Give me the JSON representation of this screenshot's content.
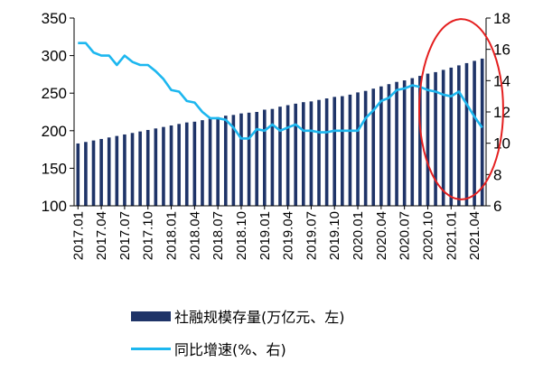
{
  "chart_data": {
    "type": "bar+line",
    "categories": [
      "2017.01",
      "2017.02",
      "2017.03",
      "2017.04",
      "2017.05",
      "2017.06",
      "2017.07",
      "2017.08",
      "2017.09",
      "2017.10",
      "2017.11",
      "2017.12",
      "2018.01",
      "2018.02",
      "2018.03",
      "2018.04",
      "2018.05",
      "2018.06",
      "2018.07",
      "2018.08",
      "2018.09",
      "2018.10",
      "2018.11",
      "2018.12",
      "2019.01",
      "2019.02",
      "2019.03",
      "2019.04",
      "2019.05",
      "2019.06",
      "2019.07",
      "2019.08",
      "2019.09",
      "2019.10",
      "2019.11",
      "2019.12",
      "2020.01",
      "2020.02",
      "2020.03",
      "2020.04",
      "2020.05",
      "2020.06",
      "2020.07",
      "2020.08",
      "2020.09",
      "2020.10",
      "2020.11",
      "2020.12",
      "2021.01",
      "2021.02",
      "2021.03",
      "2021.04",
      "2021.05"
    ],
    "x_tick_labels": [
      "2017.01",
      "2017.04",
      "2017.07",
      "2017.10",
      "2018.01",
      "2018.04",
      "2018.07",
      "2018.10",
      "2019.01",
      "2019.04",
      "2019.07",
      "2019.10",
      "2020.01",
      "2020.04",
      "2020.07",
      "2020.10",
      "2021.01",
      "2021.04"
    ],
    "series": [
      {
        "name": "社融规模存量(万亿元、左)",
        "type": "bar",
        "axis": "left",
        "color": "#1f3468",
        "values": [
          183,
          185,
          187,
          189,
          191,
          193,
          195,
          197,
          199,
          201,
          203,
          205,
          207,
          209,
          211,
          212,
          214,
          216,
          218,
          220,
          221,
          223,
          224,
          225,
          228,
          229,
          232,
          234,
          236,
          238,
          239,
          241,
          243,
          245,
          246,
          248,
          251,
          253,
          256,
          259,
          262,
          265,
          267,
          270,
          273,
          276,
          278,
          281,
          284,
          287,
          290,
          293,
          296
        ]
      },
      {
        "name": "同比增速(%、右)",
        "type": "line",
        "axis": "right",
        "color": "#1db7ef",
        "values": [
          16.4,
          16.4,
          15.8,
          15.6,
          15.6,
          15.0,
          15.6,
          15.2,
          15.0,
          15.0,
          14.6,
          14.1,
          13.4,
          13.3,
          12.7,
          12.6,
          12.0,
          11.6,
          11.6,
          11.5,
          11.0,
          10.3,
          10.3,
          10.9,
          10.8,
          11.2,
          10.8,
          11.0,
          11.2,
          10.8,
          10.8,
          10.7,
          10.7,
          10.8,
          10.8,
          10.8,
          10.8,
          11.6,
          12.1,
          12.7,
          12.9,
          13.4,
          13.5,
          13.7,
          13.6,
          13.4,
          13.3,
          13.1,
          13.0,
          13.3,
          12.5,
          11.7,
          11.0
        ]
      }
    ],
    "y_left": {
      "ticks": [
        "100",
        "150",
        "200",
        "250",
        "300",
        "350"
      ],
      "range": [
        100,
        350
      ]
    },
    "y_right": {
      "ticks": [
        "6",
        "8",
        "10",
        "12",
        "14",
        "16",
        "18"
      ],
      "range": [
        6,
        18
      ]
    },
    "annotation": {
      "shape": "ellipse",
      "color": "#e41f1f"
    },
    "legend_position": "bottom",
    "grid": false
  }
}
